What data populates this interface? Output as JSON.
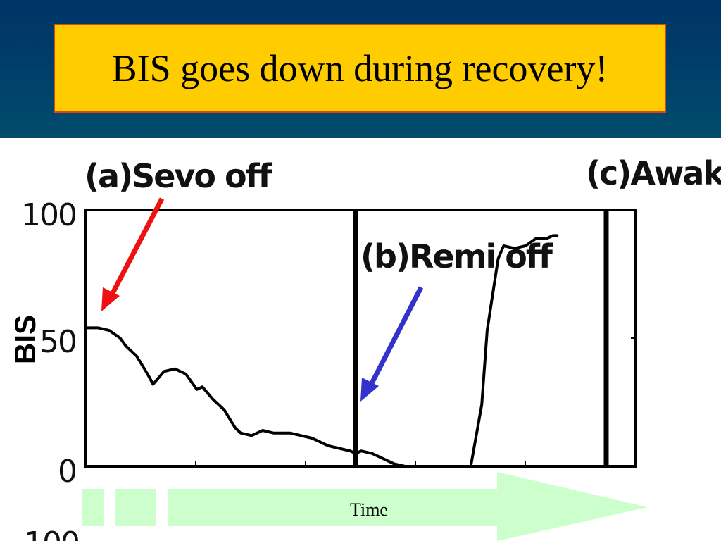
{
  "slide": {
    "title": "BIS goes down during recovery!",
    "title_bg": "#ffcc00",
    "title_border": "#e0441a"
  },
  "chart_data": {
    "type": "line",
    "ylabel": "BIS",
    "xlabel": "",
    "ylim": [
      0,
      100
    ],
    "yticks": [
      0,
      50,
      100
    ],
    "line_color": "#000000",
    "series": [
      {
        "x": [
          0,
          2,
          4,
          6,
          7,
          9,
          11,
          12,
          14,
          16,
          18,
          20,
          21,
          23,
          25,
          27,
          28,
          30,
          32,
          34,
          35,
          37,
          39,
          41,
          42,
          44,
          46,
          48,
          49,
          50,
          52,
          54,
          56,
          58,
          59,
          61,
          63,
          65,
          66,
          68,
          70,
          72,
          73,
          75,
          76,
          78,
          80,
          82,
          84,
          85,
          86
        ],
        "y": [
          54,
          54,
          53,
          50,
          47,
          43,
          36,
          32,
          37,
          38,
          36,
          30,
          31,
          26,
          22,
          15,
          13,
          12,
          14,
          13,
          13,
          13,
          12,
          11,
          10,
          8,
          7,
          6,
          5,
          6,
          5,
          3,
          1,
          0,
          0,
          0,
          0,
          0,
          0,
          0,
          0,
          24,
          53,
          81,
          86,
          85,
          86,
          89,
          89,
          90,
          90
        ]
      }
    ],
    "xlim": [
      0,
      100
    ],
    "markers": [
      {
        "label": "(a)Sevo off",
        "x": 0
      },
      {
        "label": "(b)Remi off",
        "x": 49
      },
      {
        "label": "(c)Awake",
        "x": 95
      }
    ],
    "arrows": [
      {
        "color": "#ee1111",
        "points_to": "(a)Sevo off"
      },
      {
        "color": "#3333cc",
        "points_to": "(b)Remi off"
      }
    ],
    "time_axis": {
      "label": "Time",
      "color": "#ccffcc"
    }
  }
}
